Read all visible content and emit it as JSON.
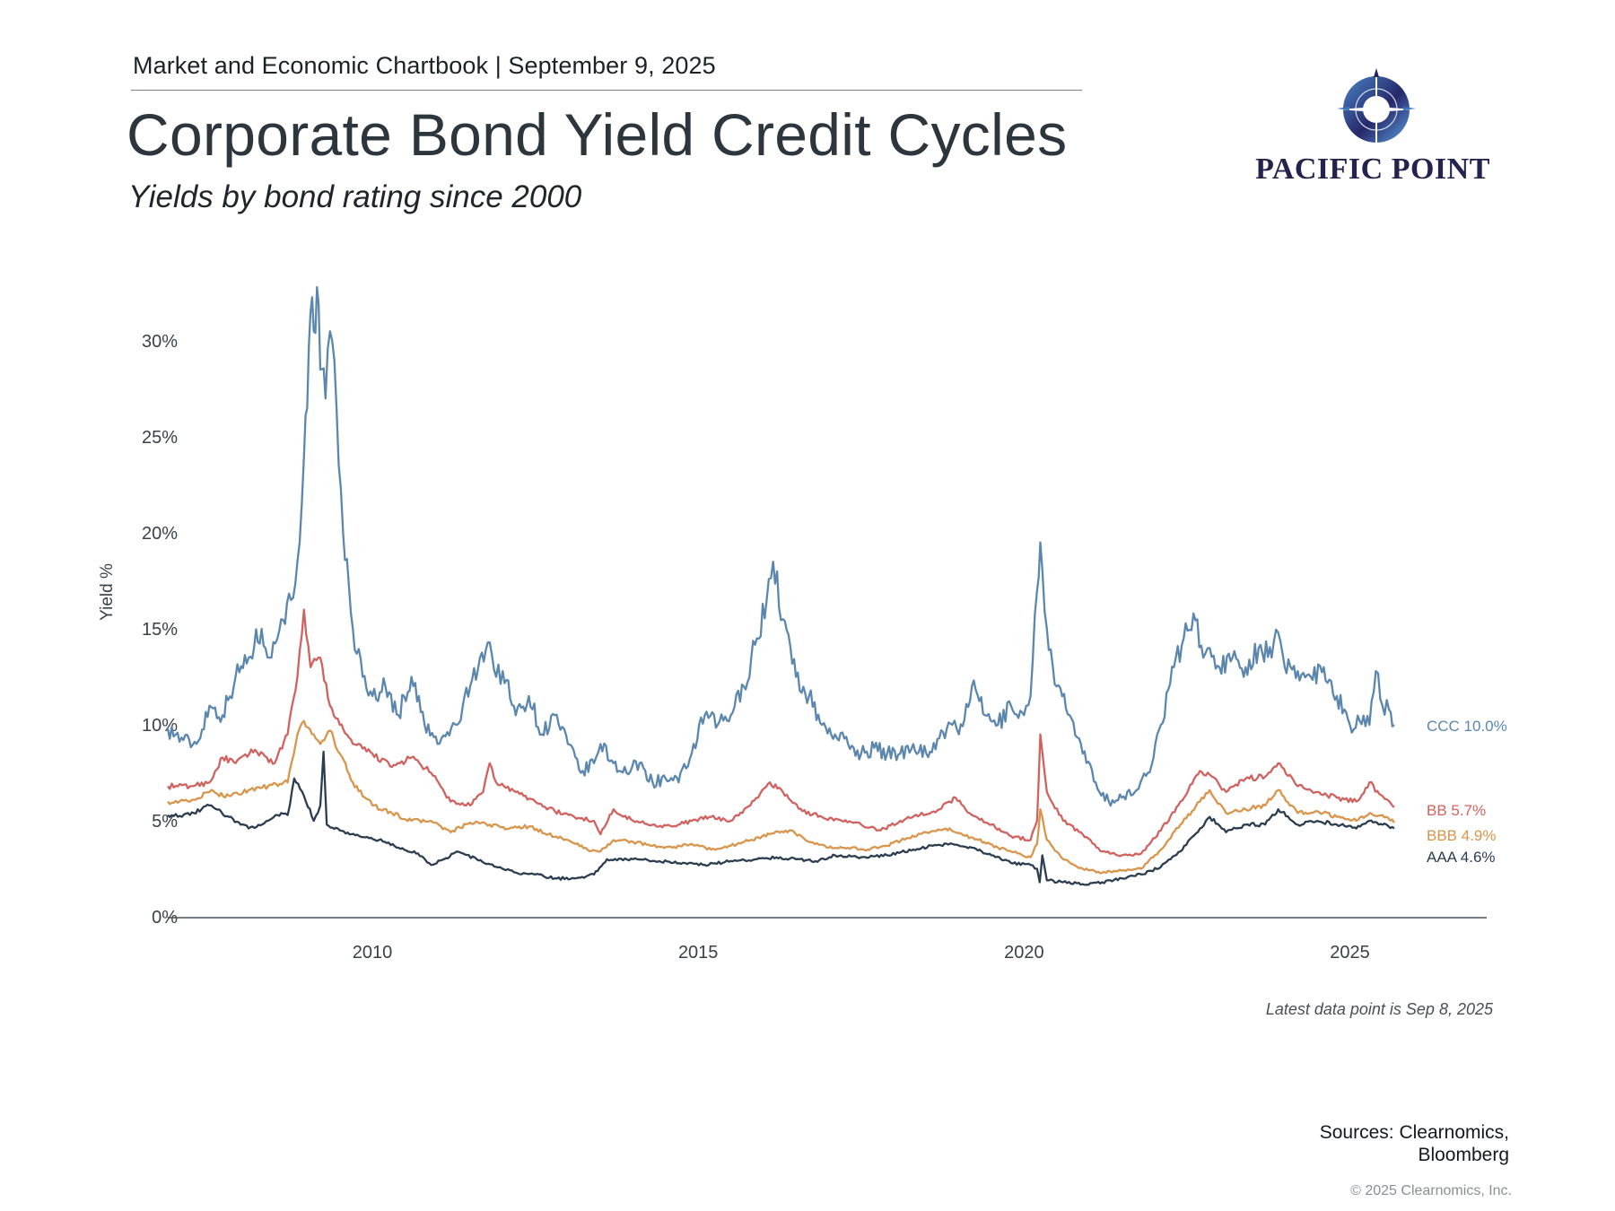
{
  "header": {
    "kicker": "Market and Economic Chartbook | September 9, 2025",
    "title": "Corporate Bond Yield Credit Cycles",
    "subtitle": "Yields by bond rating since 2000"
  },
  "logo": {
    "name": "PACIFIC POINT",
    "icon": "compass-icon"
  },
  "footer": {
    "note": "Latest data point is Sep 8, 2025",
    "sources_line1": "Sources: Clearnomics,",
    "sources_line2": "Bloomberg",
    "copyright": "© 2025 Clearnomics, Inc."
  },
  "chart_data": {
    "type": "line",
    "title": "Corporate Bond Yield Credit Cycles",
    "subtitle": "Yields by bond rating since 2000",
    "xlabel": "",
    "ylabel": "Yield %",
    "xlim": [
      2006.86,
      2027.1
    ],
    "ylim": [
      0,
      33
    ],
    "x_ticks": [
      2010,
      2015,
      2020,
      2025
    ],
    "x_tick_labels": [
      "2010",
      "2015",
      "2020",
      "2025"
    ],
    "y_ticks": [
      0,
      5,
      10,
      15,
      20,
      25,
      30
    ],
    "y_tick_labels": [
      "0%",
      "5%",
      "10%",
      "15%",
      "20%",
      "25%",
      "30%"
    ],
    "grid": false,
    "legend": "end-of-line labels (right)",
    "series": [
      {
        "name": "CCC",
        "color": "#5b87ae",
        "end_label": "CCC 10.0%",
        "latest": 10.0,
        "x": [
          2006.86,
          2007.1,
          2007.3,
          2007.5,
          2007.7,
          2007.9,
          2008.1,
          2008.3,
          2008.45,
          2008.6,
          2008.75,
          2008.85,
          2008.95,
          2009.0,
          2009.05,
          2009.1,
          2009.15,
          2009.2,
          2009.28,
          2009.35,
          2009.45,
          2009.55,
          2009.7,
          2009.85,
          2010.0,
          2010.2,
          2010.4,
          2010.6,
          2010.8,
          2011.0,
          2011.3,
          2011.5,
          2011.65,
          2011.8,
          2011.9,
          2012.0,
          2012.2,
          2012.4,
          2012.6,
          2012.8,
          2013.0,
          2013.2,
          2013.4,
          2013.5,
          2013.7,
          2013.9,
          2014.1,
          2014.3,
          2014.5,
          2014.7,
          2014.9,
          2015.1,
          2015.3,
          2015.5,
          2015.7,
          2015.9,
          2016.05,
          2016.15,
          2016.3,
          2016.5,
          2016.7,
          2016.9,
          2017.1,
          2017.3,
          2017.5,
          2017.7,
          2017.9,
          2018.1,
          2018.3,
          2018.5,
          2018.7,
          2018.9,
          2019.0,
          2019.2,
          2019.4,
          2019.6,
          2019.8,
          2020.0,
          2020.1,
          2020.2,
          2020.25,
          2020.35,
          2020.5,
          2020.7,
          2020.9,
          2021.1,
          2021.3,
          2021.5,
          2021.7,
          2021.9,
          2022.1,
          2022.3,
          2022.45,
          2022.6,
          2022.75,
          2022.85,
          2023.0,
          2023.2,
          2023.4,
          2023.6,
          2023.8,
          2023.9,
          2024.0,
          2024.2,
          2024.4,
          2024.6,
          2024.8,
          2025.0,
          2025.15,
          2025.3,
          2025.4,
          2025.5,
          2025.6,
          2025.68
        ],
        "y": [
          9.8,
          9.2,
          9.0,
          11.0,
          10.5,
          12.5,
          13.5,
          15.0,
          13.5,
          15.5,
          16.5,
          18.5,
          24.0,
          26.5,
          31.5,
          30.5,
          32.8,
          28.5,
          27.0,
          30.5,
          26.5,
          20.0,
          15.0,
          12.5,
          11.5,
          12.0,
          10.5,
          12.5,
          10.0,
          9.0,
          10.0,
          12.0,
          13.5,
          14.3,
          12.5,
          12.8,
          10.5,
          11.5,
          9.5,
          10.5,
          9.0,
          7.5,
          8.0,
          9.0,
          8.0,
          7.5,
          8.0,
          7.0,
          7.2,
          7.0,
          8.5,
          10.5,
          10.0,
          10.5,
          12.0,
          14.5,
          16.5,
          18.5,
          15.5,
          12.5,
          11.5,
          10.0,
          9.5,
          9.0,
          8.5,
          8.8,
          8.5,
          8.5,
          9.0,
          8.5,
          9.3,
          10.0,
          9.5,
          12.0,
          10.5,
          10.0,
          11.0,
          10.5,
          11.5,
          17.0,
          19.5,
          15.0,
          12.0,
          10.5,
          8.5,
          7.0,
          6.0,
          6.2,
          6.5,
          7.5,
          10.0,
          13.0,
          14.5,
          15.8,
          13.5,
          14.0,
          13.0,
          13.5,
          13.0,
          14.0,
          13.5,
          14.8,
          13.0,
          12.8,
          12.5,
          13.0,
          11.5,
          10.0,
          10.2,
          10.0,
          12.8,
          11.0,
          10.8,
          10.0
        ]
      },
      {
        "name": "BB",
        "color": "#d0625f",
        "end_label": "BB 5.7%",
        "latest": 5.7,
        "x": [
          2006.86,
          2007.2,
          2007.5,
          2007.7,
          2007.9,
          2008.2,
          2008.5,
          2008.7,
          2008.85,
          2008.95,
          2009.05,
          2009.2,
          2009.35,
          2009.5,
          2009.7,
          2010.0,
          2010.3,
          2010.6,
          2010.9,
          2011.2,
          2011.5,
          2011.7,
          2011.8,
          2011.9,
          2012.2,
          2012.5,
          2012.8,
          2013.1,
          2013.4,
          2013.5,
          2013.7,
          2014.0,
          2014.3,
          2014.6,
          2014.9,
          2015.2,
          2015.5,
          2015.8,
          2016.1,
          2016.3,
          2016.6,
          2016.9,
          2017.2,
          2017.5,
          2017.8,
          2018.1,
          2018.4,
          2018.7,
          2018.95,
          2019.2,
          2019.5,
          2019.8,
          2020.1,
          2020.2,
          2020.25,
          2020.35,
          2020.6,
          2020.9,
          2021.2,
          2021.5,
          2021.8,
          2022.1,
          2022.4,
          2022.7,
          2022.85,
          2023.1,
          2023.4,
          2023.7,
          2023.9,
          2024.2,
          2024.5,
          2024.8,
          2025.1,
          2025.3,
          2025.45,
          2025.68
        ],
        "y": [
          6.8,
          6.8,
          7.0,
          8.3,
          8.0,
          8.7,
          8.0,
          9.5,
          12.5,
          16.0,
          13.0,
          13.5,
          11.0,
          10.0,
          9.0,
          8.5,
          7.8,
          8.3,
          7.5,
          6.0,
          5.8,
          6.5,
          8.0,
          7.0,
          6.5,
          6.0,
          5.5,
          5.2,
          5.0,
          4.3,
          5.6,
          5.0,
          4.8,
          4.7,
          5.0,
          5.2,
          5.0,
          5.8,
          7.0,
          6.5,
          5.5,
          5.2,
          5.0,
          4.8,
          4.5,
          5.0,
          5.3,
          5.6,
          6.2,
          5.3,
          4.8,
          4.2,
          4.0,
          5.0,
          9.5,
          6.5,
          5.0,
          4.3,
          3.4,
          3.2,
          3.3,
          4.5,
          6.0,
          7.6,
          7.4,
          6.5,
          7.2,
          7.3,
          8.0,
          6.8,
          6.5,
          6.2,
          6.0,
          7.0,
          6.4,
          5.7
        ]
      },
      {
        "name": "BBB",
        "color": "#d9954b",
        "end_label": "BBB 4.9%",
        "latest": 4.9,
        "x": [
          2006.86,
          2007.2,
          2007.5,
          2007.8,
          2008.1,
          2008.4,
          2008.7,
          2008.85,
          2008.95,
          2009.1,
          2009.2,
          2009.35,
          2009.5,
          2009.7,
          2010.0,
          2010.3,
          2010.6,
          2010.9,
          2011.2,
          2011.5,
          2011.8,
          2012.1,
          2012.4,
          2012.7,
          2013.0,
          2013.3,
          2013.5,
          2013.7,
          2014.0,
          2014.3,
          2014.6,
          2014.9,
          2015.2,
          2015.5,
          2015.8,
          2016.1,
          2016.4,
          2016.7,
          2017.0,
          2017.3,
          2017.6,
          2017.9,
          2018.2,
          2018.5,
          2018.8,
          2018.95,
          2019.3,
          2019.6,
          2019.9,
          2020.1,
          2020.2,
          2020.25,
          2020.35,
          2020.6,
          2020.9,
          2021.2,
          2021.5,
          2021.8,
          2022.1,
          2022.4,
          2022.7,
          2022.85,
          2023.1,
          2023.4,
          2023.7,
          2023.9,
          2024.2,
          2024.5,
          2024.8,
          2025.1,
          2025.3,
          2025.5,
          2025.68
        ],
        "y": [
          6.0,
          6.0,
          6.5,
          6.3,
          6.6,
          6.8,
          7.0,
          9.5,
          10.2,
          9.5,
          9.0,
          9.7,
          8.5,
          7.0,
          5.8,
          5.4,
          5.0,
          5.0,
          4.4,
          4.9,
          4.8,
          4.6,
          4.7,
          4.3,
          4.0,
          3.5,
          3.4,
          4.0,
          3.9,
          3.7,
          3.6,
          3.8,
          3.5,
          3.7,
          4.0,
          4.3,
          4.5,
          3.9,
          3.6,
          3.6,
          3.5,
          3.7,
          4.1,
          4.4,
          4.6,
          4.4,
          4.0,
          3.6,
          3.3,
          3.1,
          3.8,
          5.6,
          4.0,
          3.0,
          2.5,
          2.3,
          2.4,
          2.5,
          3.5,
          4.8,
          6.0,
          6.6,
          5.4,
          5.6,
          5.8,
          6.6,
          5.4,
          5.5,
          5.2,
          5.0,
          5.4,
          5.3,
          4.9
        ]
      },
      {
        "name": "AAA",
        "color": "#2c3d4f",
        "end_label": "AAA 4.6%",
        "latest": 4.6,
        "x": [
          2006.86,
          2007.2,
          2007.5,
          2007.8,
          2008.1,
          2008.4,
          2008.6,
          2008.7,
          2008.8,
          2008.95,
          2009.1,
          2009.2,
          2009.25,
          2009.3,
          2009.5,
          2009.8,
          2010.1,
          2010.4,
          2010.7,
          2010.9,
          2011.1,
          2011.3,
          2011.6,
          2011.9,
          2012.2,
          2012.5,
          2012.8,
          2013.1,
          2013.4,
          2013.6,
          2014.0,
          2014.4,
          2014.8,
          2015.1,
          2015.5,
          2015.9,
          2016.2,
          2016.5,
          2016.8,
          2017.1,
          2017.5,
          2017.9,
          2018.3,
          2018.6,
          2018.9,
          2019.2,
          2019.5,
          2019.8,
          2020.1,
          2020.2,
          2020.24,
          2020.28,
          2020.35,
          2020.6,
          2020.9,
          2021.2,
          2021.5,
          2021.8,
          2022.1,
          2022.4,
          2022.7,
          2022.85,
          2023.1,
          2023.4,
          2023.7,
          2023.9,
          2024.2,
          2024.5,
          2024.8,
          2025.1,
          2025.3,
          2025.5,
          2025.68
        ],
        "y": [
          5.3,
          5.3,
          5.8,
          5.2,
          4.6,
          5.0,
          5.4,
          5.3,
          7.2,
          6.3,
          5.0,
          5.8,
          8.6,
          4.8,
          4.5,
          4.2,
          4.0,
          3.6,
          3.3,
          2.7,
          3.0,
          3.4,
          3.0,
          2.6,
          2.3,
          2.2,
          2.0,
          2.0,
          2.2,
          3.0,
          3.0,
          2.9,
          2.8,
          2.7,
          2.9,
          3.0,
          3.1,
          3.0,
          2.9,
          3.2,
          3.1,
          3.2,
          3.5,
          3.7,
          3.8,
          3.6,
          3.2,
          2.8,
          2.7,
          2.5,
          1.8,
          3.2,
          1.9,
          1.8,
          1.7,
          1.8,
          2.0,
          2.2,
          2.6,
          3.4,
          4.6,
          5.2,
          4.4,
          4.8,
          4.8,
          5.6,
          4.8,
          5.0,
          4.8,
          4.6,
          5.0,
          4.8,
          4.6
        ]
      }
    ]
  }
}
